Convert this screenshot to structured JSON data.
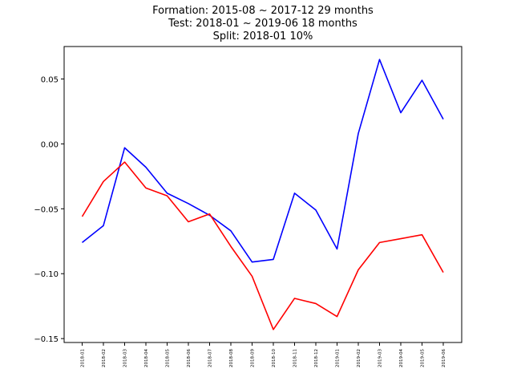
{
  "chart_data": {
    "type": "line",
    "title_lines": [
      "Formation: 2015-08 ~ 2017-12   29 months",
      "Test: 2018-01 ~ 2019-06   18 months",
      "Split: 2018-01    10%"
    ],
    "xlabel": "",
    "ylabel": "",
    "categories": [
      "2018-01",
      "2018-02",
      "2018-03",
      "2018-04",
      "2018-05",
      "2018-06",
      "2018-07",
      "2018-08",
      "2018-09",
      "2018-10",
      "2018-11",
      "2018-12",
      "2019-01",
      "2019-02",
      "2019-03",
      "2019-04",
      "2019-05",
      "2019-06"
    ],
    "ylim": [
      -0.153,
      0.075
    ],
    "yticks": [
      -0.15,
      -0.1,
      -0.05,
      0.0,
      0.05
    ],
    "ytick_labels": [
      "−0.15",
      "−0.10",
      "−0.05",
      "0.00",
      "0.05"
    ],
    "grid": false,
    "legend": "none",
    "series": [
      {
        "color": "#0000ff",
        "values": [
          -0.076,
          -0.063,
          -0.003,
          -0.018,
          -0.038,
          -0.046,
          -0.055,
          -0.067,
          -0.091,
          -0.089,
          -0.038,
          -0.051,
          -0.081,
          0.008,
          0.065,
          0.024,
          0.049,
          0.019
        ]
      },
      {
        "color": "#ff0000",
        "values": [
          -0.056,
          -0.029,
          -0.014,
          -0.034,
          -0.04,
          -0.06,
          -0.054,
          -0.079,
          -0.102,
          -0.143,
          -0.119,
          -0.123,
          -0.133,
          -0.097,
          -0.076,
          -0.073,
          -0.07,
          -0.099
        ]
      }
    ]
  }
}
